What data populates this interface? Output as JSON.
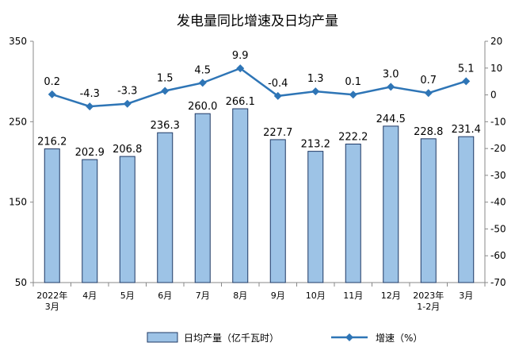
{
  "chart_data": {
    "type": "bar+line",
    "title": "发电量同比增速及日均产量",
    "categories": [
      [
        "2022年",
        "3月"
      ],
      [
        "4月"
      ],
      [
        "5月"
      ],
      [
        "6月"
      ],
      [
        "7月"
      ],
      [
        "8月"
      ],
      [
        "9月"
      ],
      [
        "10月"
      ],
      [
        "11月"
      ],
      [
        "12月"
      ],
      [
        "2023年",
        "1-2月"
      ],
      [
        "3月"
      ]
    ],
    "series": [
      {
        "name": "日均产量（亿千瓦时）",
        "type": "bar",
        "axis": "left",
        "values": [
          216.2,
          202.9,
          206.8,
          236.3,
          260.0,
          266.1,
          227.7,
          213.2,
          222.2,
          244.5,
          228.8,
          231.4
        ],
        "labels": [
          "216.2",
          "202.9",
          "206.8",
          "236.3",
          "260.0",
          "266.1",
          "227.7",
          "213.2",
          "222.2",
          "244.5",
          "228.8",
          "231.4"
        ],
        "color": "#9dc3e6",
        "stroke": "#1f3864"
      },
      {
        "name": "增速（%）",
        "type": "line",
        "axis": "right",
        "values": [
          0.2,
          -4.3,
          -3.3,
          1.5,
          4.5,
          9.9,
          -0.4,
          1.3,
          0.1,
          3.0,
          0.7,
          5.1
        ],
        "labels": [
          "0.2",
          "-4.3",
          "-3.3",
          "1.5",
          "4.5",
          "9.9",
          "-0.4",
          "1.3",
          "0.1",
          "3.0",
          "0.7",
          "5.1"
        ],
        "color": "#2e75b6"
      }
    ],
    "y_left": {
      "ylim": [
        50,
        350
      ],
      "ticks": [
        "50",
        "150",
        "250",
        "350"
      ]
    },
    "y_right": {
      "ylim": [
        -70,
        20
      ],
      "ticks": [
        "20",
        "10",
        "0",
        "-10",
        "-20",
        "-30",
        "-40",
        "-50",
        "-60",
        "-70"
      ]
    },
    "grid": false,
    "legend_position": "bottom"
  }
}
